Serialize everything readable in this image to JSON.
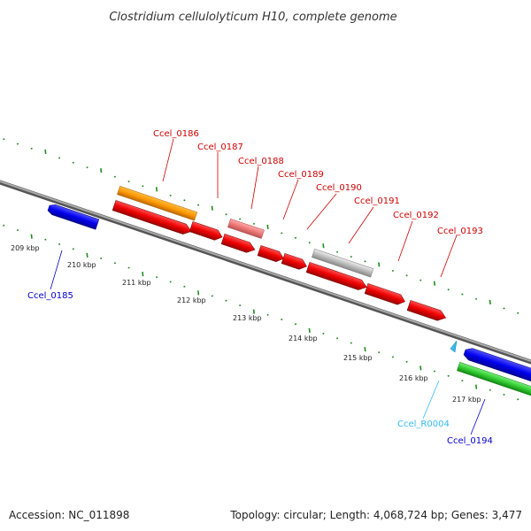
{
  "title": "Clostridium cellulolyticum H10, complete genome",
  "footer": {
    "accession": "Accession: NC_011898",
    "summary": "Topology: circular; Length: 4,068,724 bp; Genes: 3,477"
  },
  "ruler": [
    "209 kbp",
    "210 kbp",
    "211 kbp",
    "212 kbp",
    "213 kbp",
    "214 kbp",
    "215 kbp",
    "216 kbp",
    "217 kbp"
  ],
  "genes": [
    {
      "id": "ccel-0185",
      "label": "Ccel_0185",
      "color": "#0000cc"
    },
    {
      "id": "ccel-0186",
      "label": "Ccel_0186",
      "color": "#cc0000"
    },
    {
      "id": "ccel-0187",
      "label": "Ccel_0187",
      "color": "#cc0000"
    },
    {
      "id": "ccel-0188",
      "label": "Ccel_0188",
      "color": "#cc0000"
    },
    {
      "id": "ccel-0189",
      "label": "Ccel_0189",
      "color": "#cc0000"
    },
    {
      "id": "ccel-0190",
      "label": "Ccel_0190",
      "color": "#cc0000"
    },
    {
      "id": "ccel-0191",
      "label": "Ccel_0191",
      "color": "#cc0000"
    },
    {
      "id": "ccel-0192",
      "label": "Ccel_0192",
      "color": "#cc0000"
    },
    {
      "id": "ccel-0193",
      "label": "Ccel_0193",
      "color": "#cc0000"
    },
    {
      "id": "ccel-r0004",
      "label": "Ccel_R0004",
      "color": "#33bbee"
    },
    {
      "id": "ccel-0194",
      "label": "Ccel_0194",
      "color": "#0000cc"
    }
  ],
  "colors": {
    "backbone": "#888888",
    "ticks": "#228b22",
    "cds_forward": "#ee0000",
    "cds_reverse": "#0000ee",
    "rna": "#33bbee",
    "annotation_orange": "#ff9900",
    "annotation_pink": "#ee7777",
    "annotation_gray": "#bbbbbb",
    "annotation_green": "#33cc33"
  }
}
